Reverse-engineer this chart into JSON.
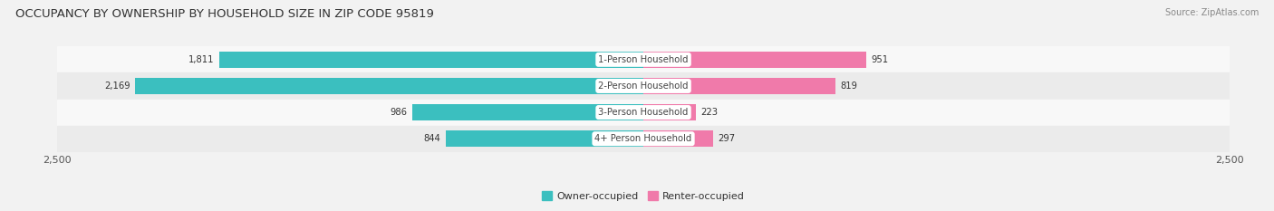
{
  "title": "OCCUPANCY BY OWNERSHIP BY HOUSEHOLD SIZE IN ZIP CODE 95819",
  "source": "Source: ZipAtlas.com",
  "categories": [
    "1-Person Household",
    "2-Person Household",
    "3-Person Household",
    "4+ Person Household"
  ],
  "owner_values": [
    1811,
    2169,
    986,
    844
  ],
  "renter_values": [
    951,
    819,
    223,
    297
  ],
  "owner_color": "#3bbfbf",
  "renter_color": "#f07aaa",
  "axis_max": 2500,
  "bg_color": "#f2f2f2",
  "row_bg_colors": [
    "#f8f8f8",
    "#ebebeb"
  ],
  "title_fontsize": 9.5,
  "label_fontsize": 7.2,
  "tick_fontsize": 8,
  "legend_fontsize": 8,
  "source_fontsize": 7
}
